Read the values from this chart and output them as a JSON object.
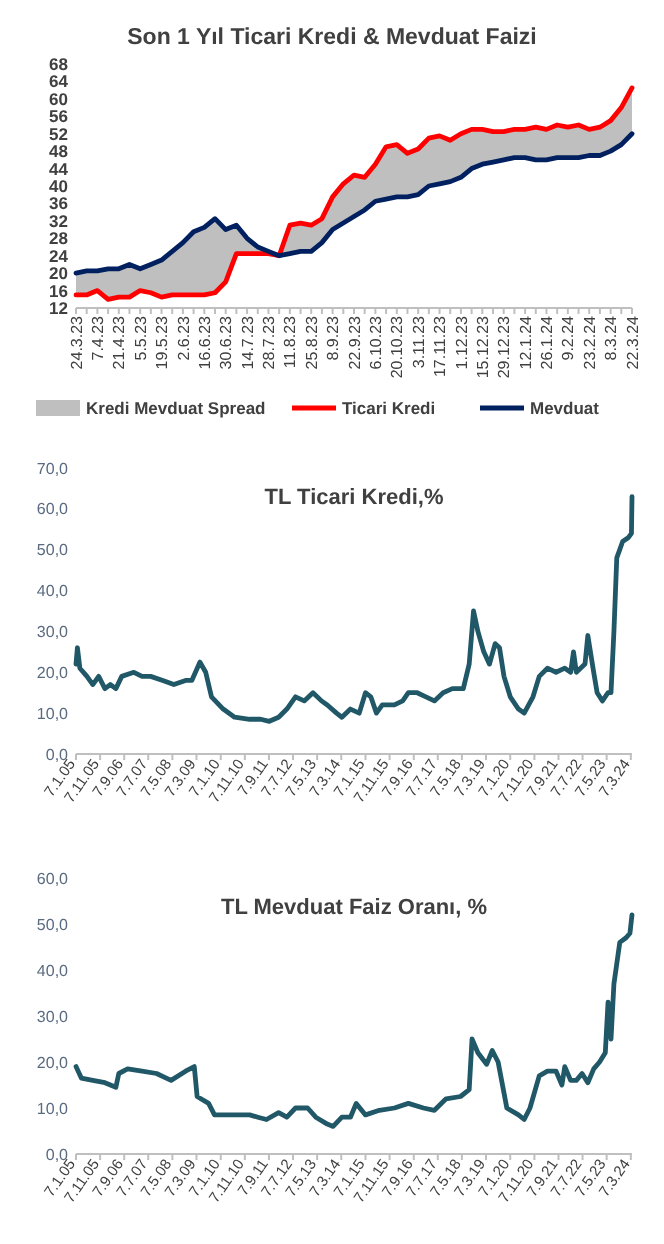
{
  "chart_data": [
    {
      "type": "line",
      "title": "Son 1 Yıl Ticari Kredi & Mevduat Faizi",
      "categories": [
        "24.3.23",
        null,
        "7.4.23",
        null,
        "21.4.23",
        null,
        "5.5.23",
        null,
        "19.5.23",
        null,
        "2.6.23",
        null,
        "16.6.23",
        null,
        "30.6.23",
        null,
        "14.7.23",
        null,
        "28.7.23",
        null,
        "11.8.23",
        null,
        "25.8.23",
        null,
        "8.9.23",
        null,
        "22.9.23",
        null,
        "6.10.23",
        null,
        "20.10.23",
        null,
        "3.11.23",
        null,
        "17.11.23",
        null,
        "1.12.23",
        null,
        "15.12.23",
        null,
        "29.12.23",
        null,
        "12.1.24",
        null,
        "26.1.24",
        null,
        "9.2.24",
        null,
        "23.2.24",
        null,
        "8.3.24",
        null,
        "22.3.24"
      ],
      "ylim": [
        12,
        68
      ],
      "yticks": [
        12,
        16,
        20,
        24,
        28,
        32,
        36,
        40,
        44,
        48,
        52,
        56,
        60,
        64,
        68
      ],
      "legend": "bottom",
      "series": [
        {
          "name": "Kredi Mevduat Spread",
          "color": "#bfbfbf",
          "upper": [
            15,
            15,
            16,
            14,
            14.5,
            14.5,
            16,
            15.5,
            14.5,
            15,
            15,
            15,
            15,
            15.5,
            18,
            24.5,
            24.5,
            24.5,
            24.5,
            24,
            31,
            31.5,
            31,
            32.5,
            37.5,
            40.5,
            42.5,
            42,
            45,
            49,
            49.5,
            47.5,
            48.5,
            51,
            51.5,
            50.5,
            52,
            53,
            53,
            52.5,
            52.5,
            53,
            53,
            53.5,
            53,
            54,
            53.5,
            54,
            53,
            53.5,
            55,
            58,
            62.5
          ],
          "lower": [
            20,
            20.5,
            20.5,
            21,
            21,
            22,
            21,
            22,
            23,
            25,
            27,
            29.5,
            30.5,
            32.5,
            30,
            31,
            28,
            26,
            25,
            24,
            24.5,
            25,
            25,
            27,
            30,
            31.5,
            33,
            34.5,
            36.5,
            37,
            37.5,
            37.5,
            38,
            40,
            40.5,
            41,
            42,
            44,
            45,
            45.5,
            46,
            46.5,
            46.5,
            46,
            46,
            46.5,
            46.5,
            46.5,
            47,
            47,
            48,
            49.5,
            52
          ],
          "values": [
            null,
            null,
            null,
            null,
            null,
            null,
            null,
            null,
            null,
            null,
            null,
            null,
            null,
            null,
            null,
            null,
            null,
            null,
            null,
            null,
            null,
            null,
            null,
            null,
            null,
            null,
            null,
            null,
            null,
            null,
            null,
            null,
            null,
            null,
            null,
            null,
            null,
            null,
            null,
            null,
            null,
            null,
            null,
            null,
            null,
            null,
            null,
            null,
            null,
            null,
            null,
            null,
            null
          ]
        },
        {
          "name": "Ticari Kredi",
          "color": "#ff0000",
          "values": [
            15,
            15,
            16,
            14,
            14.5,
            14.5,
            16,
            15.5,
            14.5,
            15,
            15,
            15,
            15,
            15.5,
            18,
            24.5,
            24.5,
            24.5,
            24.5,
            24,
            31,
            31.5,
            31,
            32.5,
            37.5,
            40.5,
            42.5,
            42,
            45,
            49,
            49.5,
            47.5,
            48.5,
            51,
            51.5,
            50.5,
            52,
            53,
            53,
            52.5,
            52.5,
            53,
            53,
            53.5,
            53,
            54,
            53.5,
            54,
            53,
            53.5,
            55,
            58,
            62.5
          ]
        },
        {
          "name": "Mevduat",
          "color": "#002060",
          "values": [
            20,
            20.5,
            20.5,
            21,
            21,
            22,
            21,
            22,
            23,
            25,
            27,
            29.5,
            30.5,
            32.5,
            30,
            31,
            28,
            26,
            25,
            24,
            24.5,
            25,
            25,
            27,
            30,
            31.5,
            33,
            34.5,
            36.5,
            37,
            37.5,
            37.5,
            38,
            40,
            40.5,
            41,
            42,
            44,
            45,
            45.5,
            46,
            46.5,
            46.5,
            46,
            46,
            46.5,
            46.5,
            46.5,
            47,
            47,
            48,
            49.5,
            52
          ]
        }
      ]
    },
    {
      "type": "line",
      "title": "TL Ticari Kredi,%",
      "xlim": [
        "2005-01-07",
        "2024-03-22"
      ],
      "xticks": [
        {
          "value": "2005-01-07",
          "label": "7.1.05"
        },
        {
          "value": "2005-11-07",
          "label": "7.11.05"
        },
        {
          "value": "2006-09-07",
          "label": "7.9.06"
        },
        {
          "value": "2007-07-07",
          "label": "7.7.07"
        },
        {
          "value": "2008-05-07",
          "label": "7.5.08"
        },
        {
          "value": "2009-03-07",
          "label": "7.3.09"
        },
        {
          "value": "2010-01-07",
          "label": "7.1.10"
        },
        {
          "value": "2010-11-07",
          "label": "7.11.10"
        },
        {
          "value": "2011-09-07",
          "label": "7.9.11"
        },
        {
          "value": "2012-07-07",
          "label": "7.7.12"
        },
        {
          "value": "2013-05-07",
          "label": "7.5.13"
        },
        {
          "value": "2014-03-07",
          "label": "7.3.14"
        },
        {
          "value": "2015-01-07",
          "label": "7.1.15"
        },
        {
          "value": "2015-11-07",
          "label": "7.11.15"
        },
        {
          "value": "2016-09-07",
          "label": "7.9.16"
        },
        {
          "value": "2017-07-07",
          "label": "7.7.17"
        },
        {
          "value": "2018-05-07",
          "label": "7.5.18"
        },
        {
          "value": "2019-03-07",
          "label": "7.3.19"
        },
        {
          "value": "2020-01-07",
          "label": "7.1.20"
        },
        {
          "value": "2020-11-07",
          "label": "7.11.20"
        },
        {
          "value": "2021-09-07",
          "label": "7.9.21"
        },
        {
          "value": "2022-07-07",
          "label": "7.7.22"
        },
        {
          "value": "2023-05-07",
          "label": "7.5.23"
        },
        {
          "value": "2024-03-07",
          "label": "7.3.24"
        }
      ],
      "ylim": [
        0,
        70
      ],
      "yticks": [
        {
          "value": 0,
          "label": "0,0"
        },
        {
          "value": 10,
          "label": "10,0"
        },
        {
          "value": 20,
          "label": "20,0"
        },
        {
          "value": 30,
          "label": "30,0"
        },
        {
          "value": 40,
          "label": "40,0"
        },
        {
          "value": 50,
          "label": "50,0"
        },
        {
          "value": 60,
          "label": "60,0"
        },
        {
          "value": 70,
          "label": "70,0"
        }
      ],
      "x": [
        "2005-01-07",
        "2005-01-25",
        "2005-02-25",
        "2005-05-25",
        "2005-08-07",
        "2005-10-20",
        "2006-01-07",
        "2006-03-15",
        "2006-05-25",
        "2006-08-07",
        "2007-01-07",
        "2007-04-20",
        "2007-08-07",
        "2008-01-07",
        "2008-05-25",
        "2008-10-20",
        "2009-01-07",
        "2009-04-20",
        "2009-07-01",
        "2009-09-12",
        "2010-02-07",
        "2010-07-01",
        "2011-01-07",
        "2011-05-25",
        "2011-09-12",
        "2012-01-07",
        "2012-04-20",
        "2012-08-07",
        "2012-11-25",
        "2013-03-15",
        "2013-07-01",
        "2013-09-12",
        "2014-01-07",
        "2014-03-15",
        "2014-07-01",
        "2014-10-20",
        "2015-01-07",
        "2015-03-15",
        "2015-05-25",
        "2015-08-07",
        "2016-01-07",
        "2016-04-20",
        "2016-07-01",
        "2016-10-20",
        "2017-02-07",
        "2017-05-25",
        "2017-09-12",
        "2018-01-07",
        "2018-05-25",
        "2018-08-07",
        "2018-10-01",
        "2018-11-25",
        "2019-02-07",
        "2019-04-20",
        "2019-07-01",
        "2019-08-25",
        "2019-10-20",
        "2020-01-07",
        "2020-04-20",
        "2020-07-01",
        "2020-10-20",
        "2021-01-07",
        "2021-04-20",
        "2021-08-07",
        "2021-11-25",
        "2022-02-07",
        "2022-03-15",
        "2022-04-20",
        "2022-08-07",
        "2022-09-12",
        "2022-11-25",
        "2023-01-07",
        "2023-03-15",
        "2023-05-25",
        "2023-07-01",
        "2023-08-07",
        "2023-09-12",
        "2023-11-25",
        "2024-02-07",
        "2024-03-15",
        "2024-03-22"
      ],
      "series": [
        {
          "color": "#215868",
          "values": [
            22,
            26,
            21,
            19,
            17,
            19,
            16,
            17,
            16,
            19,
            20,
            19,
            19,
            18,
            17,
            18,
            18,
            22.5,
            20,
            14,
            11,
            9,
            8.5,
            8.5,
            8,
            9,
            11,
            14,
            13,
            15,
            13,
            12,
            10,
            9,
            11,
            10,
            15,
            14,
            10,
            12,
            12,
            13,
            15,
            15,
            14,
            13,
            15,
            16,
            16,
            22,
            35,
            30,
            25,
            22,
            27,
            26,
            19,
            14,
            11,
            10,
            14,
            19,
            21,
            20,
            21,
            20,
            25,
            20,
            22,
            29,
            20,
            15,
            13,
            15,
            15,
            30,
            48,
            52,
            53,
            54,
            63
          ]
        }
      ]
    },
    {
      "type": "line",
      "title": "TL  Mevduat Faiz Oranı, %",
      "xlim": [
        "2005-01-07",
        "2024-03-22"
      ],
      "xticks": [
        {
          "value": "2005-01-07",
          "label": "7.1.05"
        },
        {
          "value": "2005-11-07",
          "label": "7.11.05"
        },
        {
          "value": "2006-09-07",
          "label": "7.9.06"
        },
        {
          "value": "2007-07-07",
          "label": "7.7.07"
        },
        {
          "value": "2008-05-07",
          "label": "7.5.08"
        },
        {
          "value": "2009-03-07",
          "label": "7.3.09"
        },
        {
          "value": "2010-01-07",
          "label": "7.1.10"
        },
        {
          "value": "2010-11-07",
          "label": "7.11.10"
        },
        {
          "value": "2011-09-07",
          "label": "7.9.11"
        },
        {
          "value": "2012-07-07",
          "label": "7.7.12"
        },
        {
          "value": "2013-05-07",
          "label": "7.5.13"
        },
        {
          "value": "2014-03-07",
          "label": "7.3.14"
        },
        {
          "value": "2015-01-07",
          "label": "7.1.15"
        },
        {
          "value": "2015-11-07",
          "label": "7.11.15"
        },
        {
          "value": "2016-09-07",
          "label": "7.9.16"
        },
        {
          "value": "2017-07-07",
          "label": "7.7.17"
        },
        {
          "value": "2018-05-07",
          "label": "7.5.18"
        },
        {
          "value": "2019-03-07",
          "label": "7.3.19"
        },
        {
          "value": "2020-01-07",
          "label": "7.1.20"
        },
        {
          "value": "2020-11-07",
          "label": "7.11.20"
        },
        {
          "value": "2021-09-07",
          "label": "7.9.21"
        },
        {
          "value": "2022-07-07",
          "label": "7.7.22"
        },
        {
          "value": "2023-05-07",
          "label": "7.5.23"
        },
        {
          "value": "2024-03-07",
          "label": "7.3.24"
        }
      ],
      "ylim": [
        0,
        60
      ],
      "yticks": [
        {
          "value": 0,
          "label": "0,0"
        },
        {
          "value": 10,
          "label": "10,0"
        },
        {
          "value": 20,
          "label": "20,0"
        },
        {
          "value": 30,
          "label": "30,0"
        },
        {
          "value": 40,
          "label": "40,0"
        },
        {
          "value": 50,
          "label": "50,0"
        },
        {
          "value": 60,
          "label": "60,0"
        }
      ],
      "x": [
        "2005-01-07",
        "2005-03-15",
        "2005-08-07",
        "2006-01-07",
        "2006-05-25",
        "2006-07-01",
        "2006-10-20",
        "2007-04-20",
        "2007-10-20",
        "2008-04-20",
        "2008-10-20",
        "2009-02-07",
        "2009-03-15",
        "2009-08-07",
        "2009-10-20",
        "2010-07-01",
        "2011-01-07",
        "2011-04-20",
        "2011-08-07",
        "2012-01-07",
        "2012-04-20",
        "2012-08-07",
        "2013-01-07",
        "2013-04-20",
        "2013-09-12",
        "2013-11-25",
        "2014-03-15",
        "2014-07-01",
        "2014-09-12",
        "2015-01-07",
        "2015-07-01",
        "2016-01-07",
        "2016-07-01",
        "2017-01-07",
        "2017-05-25",
        "2017-10-20",
        "2018-04-20",
        "2018-08-07",
        "2018-09-12",
        "2018-11-25",
        "2019-03-15",
        "2019-05-25",
        "2019-08-07",
        "2019-11-25",
        "2020-04-20",
        "2020-07-01",
        "2020-09-12",
        "2021-01-07",
        "2021-04-20",
        "2021-08-07",
        "2021-10-20",
        "2021-11-25",
        "2022-02-07",
        "2022-04-20",
        "2022-07-01",
        "2022-09-12",
        "2022-11-25",
        "2023-02-07",
        "2023-04-20",
        "2023-05-25",
        "2023-07-01",
        "2023-08-07",
        "2023-10-20",
        "2024-01-07",
        "2024-02-25",
        "2024-03-22"
      ],
      "series": [
        {
          "color": "#215868",
          "values": [
            19,
            16.5,
            16,
            15.5,
            14.5,
            17.5,
            18.5,
            18,
            17.5,
            16,
            18,
            19,
            12.5,
            11,
            8.5,
            8.5,
            8.5,
            8,
            7.5,
            9,
            8,
            10,
            10,
            8,
            6.5,
            6,
            8,
            8,
            11,
            8.5,
            9.5,
            10,
            11,
            10,
            9.5,
            12,
            12.5,
            14,
            25,
            22,
            19.5,
            22.5,
            20,
            10,
            8.5,
            7.5,
            10,
            17,
            18,
            18,
            15,
            19,
            16,
            16,
            17.5,
            15.5,
            18.5,
            20,
            22,
            33,
            25,
            37,
            46,
            47,
            48,
            52
          ]
        }
      ]
    }
  ]
}
